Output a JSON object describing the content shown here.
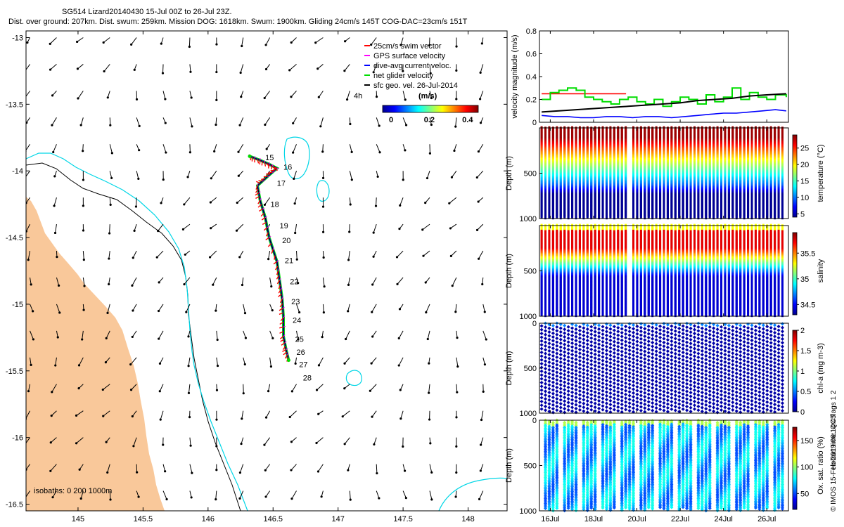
{
  "header": {
    "line1": "SG514 Lizard20140430 15-Jul 00Z to 26-Jul 23Z.",
    "line2": "Dist. over ground: 207km. Dist. swum: 259km. Mission DOG: 1618km. Swum: 1900km. Gliding 24cm/s 145T COG-DAC=23cm/s 151T"
  },
  "colors": {
    "land": "#f9c89a",
    "isobath_200": "#000000",
    "isobath_1000": "#00d6e6",
    "swim": "#ff0000",
    "gps": "#ff00ff",
    "dac": "#0000ff",
    "net": "#00dd00",
    "sfc": "#000000"
  },
  "map": {
    "xlim": [
      144.6,
      148.3
    ],
    "ylim": [
      -16.55,
      -12.95
    ],
    "xticks": [
      "145",
      "145.5",
      "146",
      "146.5",
      "147",
      "147.5",
      "148"
    ],
    "yticks": [
      "-13",
      "-13.5",
      "-14",
      "-14.5",
      "-15",
      "-15.5",
      "-16",
      "-16.5"
    ],
    "isobath_label": "isobaths: 0   200  1000m",
    "legend": [
      {
        "label": "25cm/s swim vector",
        "color": "#ff0000"
      },
      {
        "label": "GPS surface velocity",
        "color": "#ff00ff"
      },
      {
        "label": "dive-avg current veloc.",
        "color": "#0000ff"
      },
      {
        "label": "net glider velocity",
        "color": "#00dd00"
      },
      {
        "label": "sfc geo. vel. 26-Jul-2014",
        "color": "#000000"
      }
    ],
    "legend_extra": "4h",
    "colorbar_title": "(m/s)",
    "colorbar_ticks": [
      "0",
      "0.2",
      "0.4"
    ],
    "day_labels": [
      {
        "d": "15",
        "lon": 146.44,
        "lat": -13.9
      },
      {
        "d": "16",
        "lon": 146.58,
        "lat": -13.97
      },
      {
        "d": "17",
        "lon": 146.53,
        "lat": -14.09
      },
      {
        "d": "18",
        "lon": 146.48,
        "lat": -14.25
      },
      {
        "d": "19",
        "lon": 146.55,
        "lat": -14.41
      },
      {
        "d": "20",
        "lon": 146.57,
        "lat": -14.52
      },
      {
        "d": "21",
        "lon": 146.59,
        "lat": -14.67
      },
      {
        "d": "22",
        "lon": 146.63,
        "lat": -14.83
      },
      {
        "d": "23",
        "lon": 146.64,
        "lat": -14.98
      },
      {
        "d": "24",
        "lon": 146.65,
        "lat": -15.12
      },
      {
        "d": "25",
        "lon": 146.67,
        "lat": -15.26
      },
      {
        "d": "26",
        "lon": 146.68,
        "lat": -15.36
      },
      {
        "d": "27",
        "lon": 146.7,
        "lat": -15.45
      },
      {
        "d": "28",
        "lon": 146.73,
        "lat": -15.55
      }
    ],
    "track": [
      [
        146.32,
        -13.89
      ],
      [
        146.4,
        -13.92
      ],
      [
        146.47,
        -13.95
      ],
      [
        146.53,
        -13.98
      ],
      [
        146.46,
        -14.04
      ],
      [
        146.38,
        -14.11
      ],
      [
        146.4,
        -14.22
      ],
      [
        146.44,
        -14.35
      ],
      [
        146.47,
        -14.5
      ],
      [
        146.53,
        -14.68
      ],
      [
        146.55,
        -14.82
      ],
      [
        146.57,
        -14.96
      ],
      [
        146.58,
        -15.1
      ],
      [
        146.58,
        -15.24
      ],
      [
        146.6,
        -15.34
      ],
      [
        146.62,
        -15.42
      ]
    ]
  },
  "chart_data": [
    {
      "type": "line",
      "title": "",
      "xlabel": "",
      "ylabel": "velocity magnitude (m/s)",
      "xlim": [
        15.5,
        27
      ],
      "ylim": [
        0,
        0.8
      ],
      "yticks": [
        "0",
        "0.2",
        "0.4",
        "0.6",
        "0.8"
      ],
      "series": [
        {
          "name": "25cm/s swim vector",
          "color": "#ff0000",
          "x": [
            15.6,
            19.5,
            19.5,
            26.9
          ],
          "y": [
            0.25,
            0.25,
            null,
            0.25
          ]
        },
        {
          "name": "net glider velocity",
          "color": "#00dd00",
          "x": [
            15.6,
            16.0,
            16.4,
            16.8,
            17.2,
            17.6,
            18.0,
            18.4,
            18.8,
            19.2,
            19.6,
            20.0,
            20.4,
            20.8,
            21.2,
            21.6,
            22.0,
            22.4,
            22.8,
            23.2,
            23.6,
            24.0,
            24.4,
            24.8,
            25.2,
            25.6,
            26.0,
            26.4,
            26.9
          ],
          "y": [
            0.2,
            0.26,
            0.28,
            0.3,
            0.28,
            0.22,
            0.2,
            0.18,
            0.16,
            0.2,
            0.22,
            0.18,
            0.16,
            0.2,
            0.14,
            0.18,
            0.22,
            0.2,
            0.16,
            0.24,
            0.18,
            0.22,
            0.3,
            0.2,
            0.26,
            0.22,
            0.2,
            0.24,
            0.22
          ]
        },
        {
          "name": "dive-avg current veloc.",
          "color": "#0000ff",
          "x": [
            15.6,
            16.2,
            16.8,
            17.4,
            18.0,
            18.6,
            19.2,
            19.8,
            20.4,
            21.0,
            21.6,
            22.2,
            22.8,
            23.4,
            24.0,
            24.6,
            25.2,
            25.8,
            26.4,
            26.9
          ],
          "y": [
            0.06,
            0.05,
            0.05,
            0.04,
            0.04,
            0.05,
            0.05,
            0.04,
            0.05,
            0.05,
            0.04,
            0.05,
            0.06,
            0.07,
            0.08,
            0.08,
            0.09,
            0.1,
            0.11,
            0.1
          ]
        },
        {
          "name": "sfc geo. vel.",
          "color": "#000000",
          "x": [
            15.6,
            16.4,
            17.2,
            18.0,
            18.8,
            19.6,
            20.4,
            21.2,
            22.0,
            22.8,
            23.6,
            24.4,
            25.2,
            26.0,
            26.9
          ],
          "y": [
            0.09,
            0.1,
            0.11,
            0.12,
            0.13,
            0.14,
            0.15,
            0.16,
            0.17,
            0.19,
            0.2,
            0.21,
            0.23,
            0.24,
            0.25
          ]
        }
      ]
    },
    {
      "type": "heatmap",
      "variable": "temperature",
      "ylabel": "Depth (m)",
      "clabel": "temperature (°C)",
      "ylim": [
        0,
        1000
      ],
      "yticks": [
        "500",
        "1000"
      ],
      "clim": [
        4,
        29
      ],
      "cticks": [
        "5",
        "10",
        "15",
        "20",
        "25"
      ],
      "gap": [
        19.55,
        19.75
      ]
    },
    {
      "type": "heatmap",
      "variable": "salinity",
      "ylabel": "Depth (m)",
      "clabel": "salinity",
      "ylim": [
        0,
        1000
      ],
      "yticks": [
        "500",
        "1000"
      ],
      "clim": [
        34.3,
        35.9
      ],
      "cticks": [
        "34.5",
        "35",
        "35.5"
      ],
      "gap": [
        19.55,
        19.75
      ]
    },
    {
      "type": "scatter",
      "variable": "chl-a",
      "ylabel": "Depth (m)",
      "clabel": "chl-a (mg m-3)",
      "ylim": [
        0,
        1000
      ],
      "yticks": [
        "0",
        "500",
        "1000"
      ],
      "clim": [
        0,
        2
      ],
      "cticks": [
        "0",
        "0.5",
        "1",
        "1.5",
        "2"
      ]
    },
    {
      "type": "scatter",
      "variable": "oxygen",
      "ylabel": "Depth (m)",
      "clabel": "Ox. sat. ratio (%)",
      "ylim": [
        0,
        1000
      ],
      "yticks": [
        "0",
        "500",
        "1000"
      ],
      "clim": [
        20,
        175
      ],
      "cticks": [
        "50",
        "100",
        "150"
      ],
      "xlim": [
        15.5,
        27
      ],
      "xticks": [
        "16Jul",
        "18Jul",
        "20Jul",
        "22Jul",
        "24Jul",
        "26Jul"
      ],
      "xtick_vals": [
        16,
        18,
        20,
        22,
        24,
        26
      ]
    }
  ],
  "footer": {
    "hobart": "Hobart time. QC flags 1  2",
    "imos": "© IMOS 15-Feb-2019 06:14:45"
  }
}
